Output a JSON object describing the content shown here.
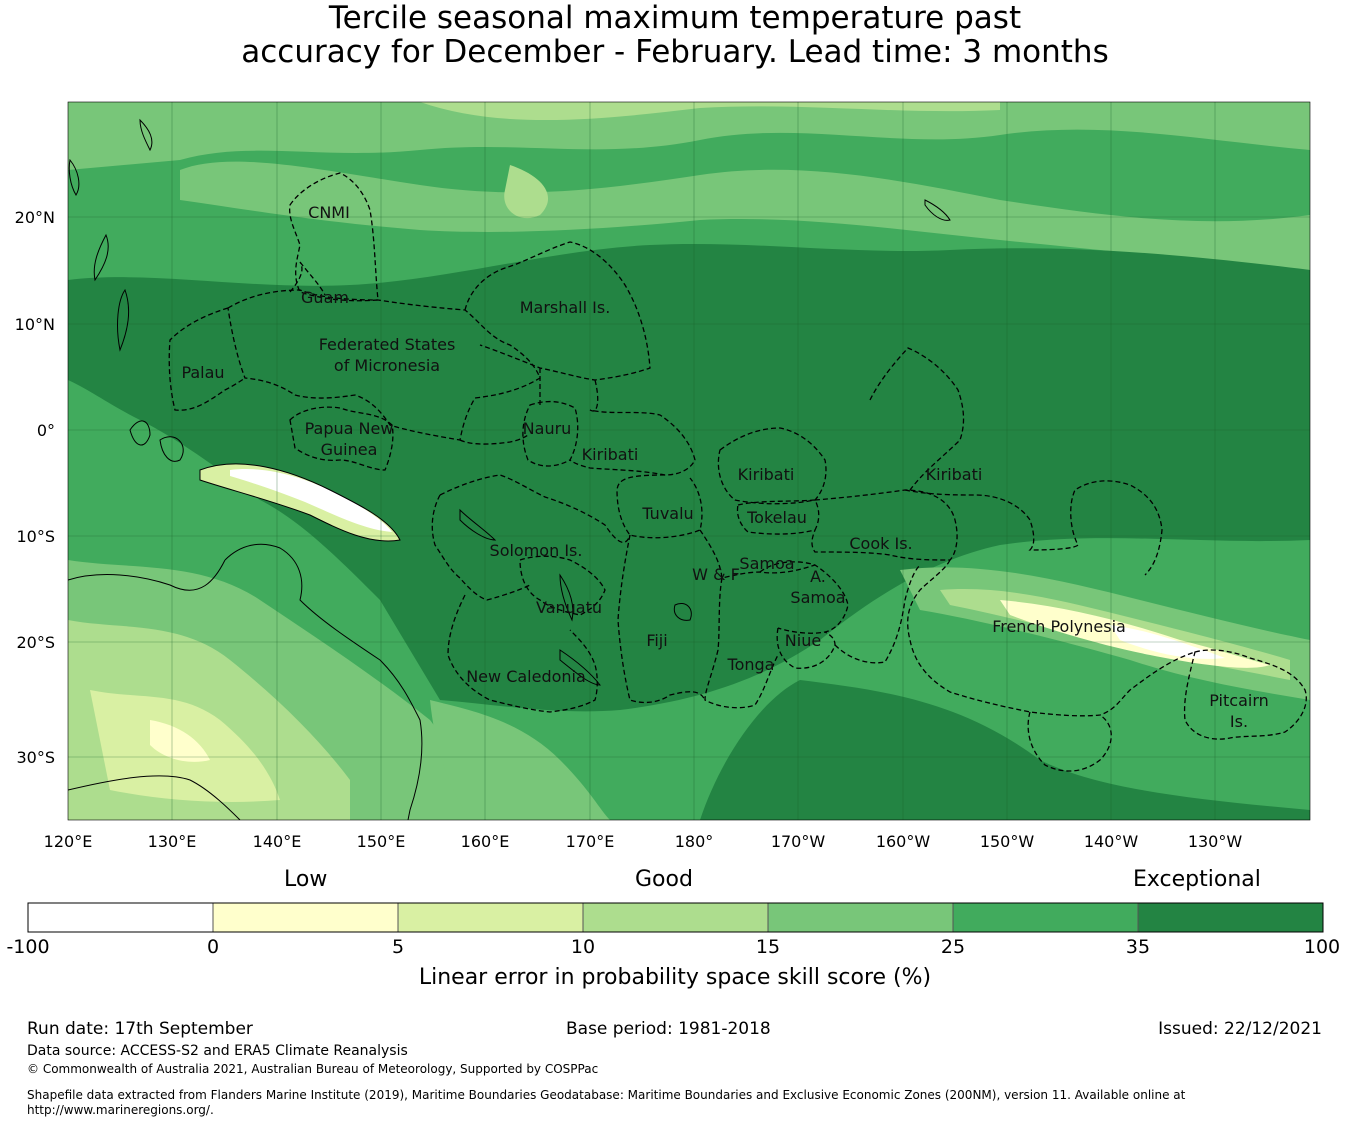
{
  "title": {
    "line1": "Tercile seasonal maximum temperature past",
    "line2": "accuracy for December - February. Lead time: 3 months"
  },
  "map": {
    "lat_ticks": [
      "20°N",
      "10°N",
      "0°",
      "10°S",
      "20°S",
      "30°S"
    ],
    "lon_ticks": [
      "120°E",
      "130°E",
      "140°E",
      "150°E",
      "160°E",
      "170°E",
      "180°",
      "170°W",
      "160°W",
      "150°W",
      "140°W",
      "130°W"
    ],
    "regions": [
      {
        "name": "CNMI"
      },
      {
        "name": "Guam"
      },
      {
        "name": "Marshall Is."
      },
      {
        "name": "Federated States"
      },
      {
        "name": "of Micronesia"
      },
      {
        "name": "Palau"
      },
      {
        "name": "Papua New"
      },
      {
        "name": "Guinea"
      },
      {
        "name": "Nauru"
      },
      {
        "name": "Kiribati"
      },
      {
        "name": "Kiribati"
      },
      {
        "name": "Kiribati"
      },
      {
        "name": "Tuvalu"
      },
      {
        "name": "Tokelau"
      },
      {
        "name": "Solomon Is."
      },
      {
        "name": "Samoa"
      },
      {
        "name": "W & F"
      },
      {
        "name": "A."
      },
      {
        "name": "Samoa"
      },
      {
        "name": "Cook Is."
      },
      {
        "name": "Vanuatu"
      },
      {
        "name": "Fiji"
      },
      {
        "name": "Niue"
      },
      {
        "name": "Tonga"
      },
      {
        "name": "New Caledonia"
      },
      {
        "name": "French Polynesia"
      },
      {
        "name": "Pitcairn"
      },
      {
        "name": "Is."
      }
    ],
    "colors": {
      "land": "#ffffff",
      "coast": "#000000"
    }
  },
  "colorbar": {
    "categories": {
      "low": "Low",
      "good": "Good",
      "exceptional": "Exceptional"
    },
    "ticks": [
      "-100",
      "0",
      "5",
      "10",
      "15",
      "25",
      "35",
      "100"
    ],
    "bins": [
      {
        "color": "#ffffff"
      },
      {
        "color": "#ffffcc"
      },
      {
        "color": "#d9f0a3"
      },
      {
        "color": "#addd8e"
      },
      {
        "color": "#78c679"
      },
      {
        "color": "#41ab5d"
      },
      {
        "color": "#238443"
      }
    ],
    "label": "Linear error in probability space skill score (%)"
  },
  "footer": {
    "run_date": "Run date: 17th September",
    "base_period": "Base period: 1981-2018",
    "issued": "Issued: 22/12/2021",
    "data_source": "Data source: ACCESS-S2 and ERA5 Climate Reanalysis",
    "copyright": "© Commonwealth of Australia 2021, Australian Bureau of Meteorology, Supported by COSPPac",
    "shapefile_line1": "Shapefile data extracted from Flanders Marine Institute (2019), Maritime Boundaries Geodatabase: Maritime Boundaries and Exclusive Economic Zones (200NM), version 11. Available online at",
    "shapefile_line2": "http://www.marineregions.org/."
  }
}
